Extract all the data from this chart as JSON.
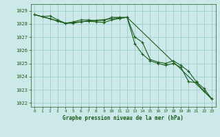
{
  "background_color": "#cce8e8",
  "grid_color": "#99cccc",
  "line_color": "#1a5c1a",
  "xlabel": "Graphe pression niveau de la mer (hPa)",
  "ylim": [
    1021.7,
    1029.5
  ],
  "xlim": [
    -0.5,
    23.5
  ],
  "yticks": [
    1022,
    1023,
    1024,
    1025,
    1026,
    1027,
    1028,
    1029
  ],
  "xticks": [
    0,
    1,
    2,
    3,
    4,
    5,
    6,
    7,
    8,
    9,
    10,
    11,
    12,
    13,
    14,
    15,
    16,
    17,
    18,
    19,
    20,
    21,
    22,
    23
  ],
  "series1_x": [
    0,
    1,
    2,
    3,
    4,
    5,
    6,
    7,
    8,
    9,
    10,
    11,
    12,
    13,
    14,
    15,
    16,
    17,
    18,
    19,
    20,
    21,
    22,
    23
  ],
  "series1_y": [
    1028.7,
    1028.55,
    1028.6,
    1028.3,
    1028.05,
    1028.15,
    1028.3,
    1028.3,
    1028.25,
    1028.25,
    1028.5,
    1028.5,
    1028.5,
    1027.0,
    1026.6,
    1025.3,
    1025.1,
    1025.0,
    1025.2,
    1024.85,
    1024.4,
    1023.6,
    1023.1,
    1022.3
  ],
  "series2_x": [
    0,
    1,
    2,
    3,
    4,
    5,
    6,
    7,
    8,
    9,
    10,
    11,
    12,
    13,
    14,
    15,
    16,
    17,
    18,
    19,
    20,
    21,
    22,
    23
  ],
  "series2_y": [
    1028.7,
    1028.55,
    1028.4,
    1028.2,
    1028.05,
    1028.05,
    1028.15,
    1028.2,
    1028.15,
    1028.1,
    1028.3,
    1028.4,
    1028.5,
    1026.5,
    1025.7,
    1025.2,
    1025.0,
    1024.85,
    1025.0,
    1024.7,
    1023.6,
    1023.55,
    1022.9,
    1022.3
  ],
  "series3_x": [
    0,
    4,
    12,
    23
  ],
  "series3_y": [
    1028.7,
    1028.05,
    1028.5,
    1022.3
  ]
}
